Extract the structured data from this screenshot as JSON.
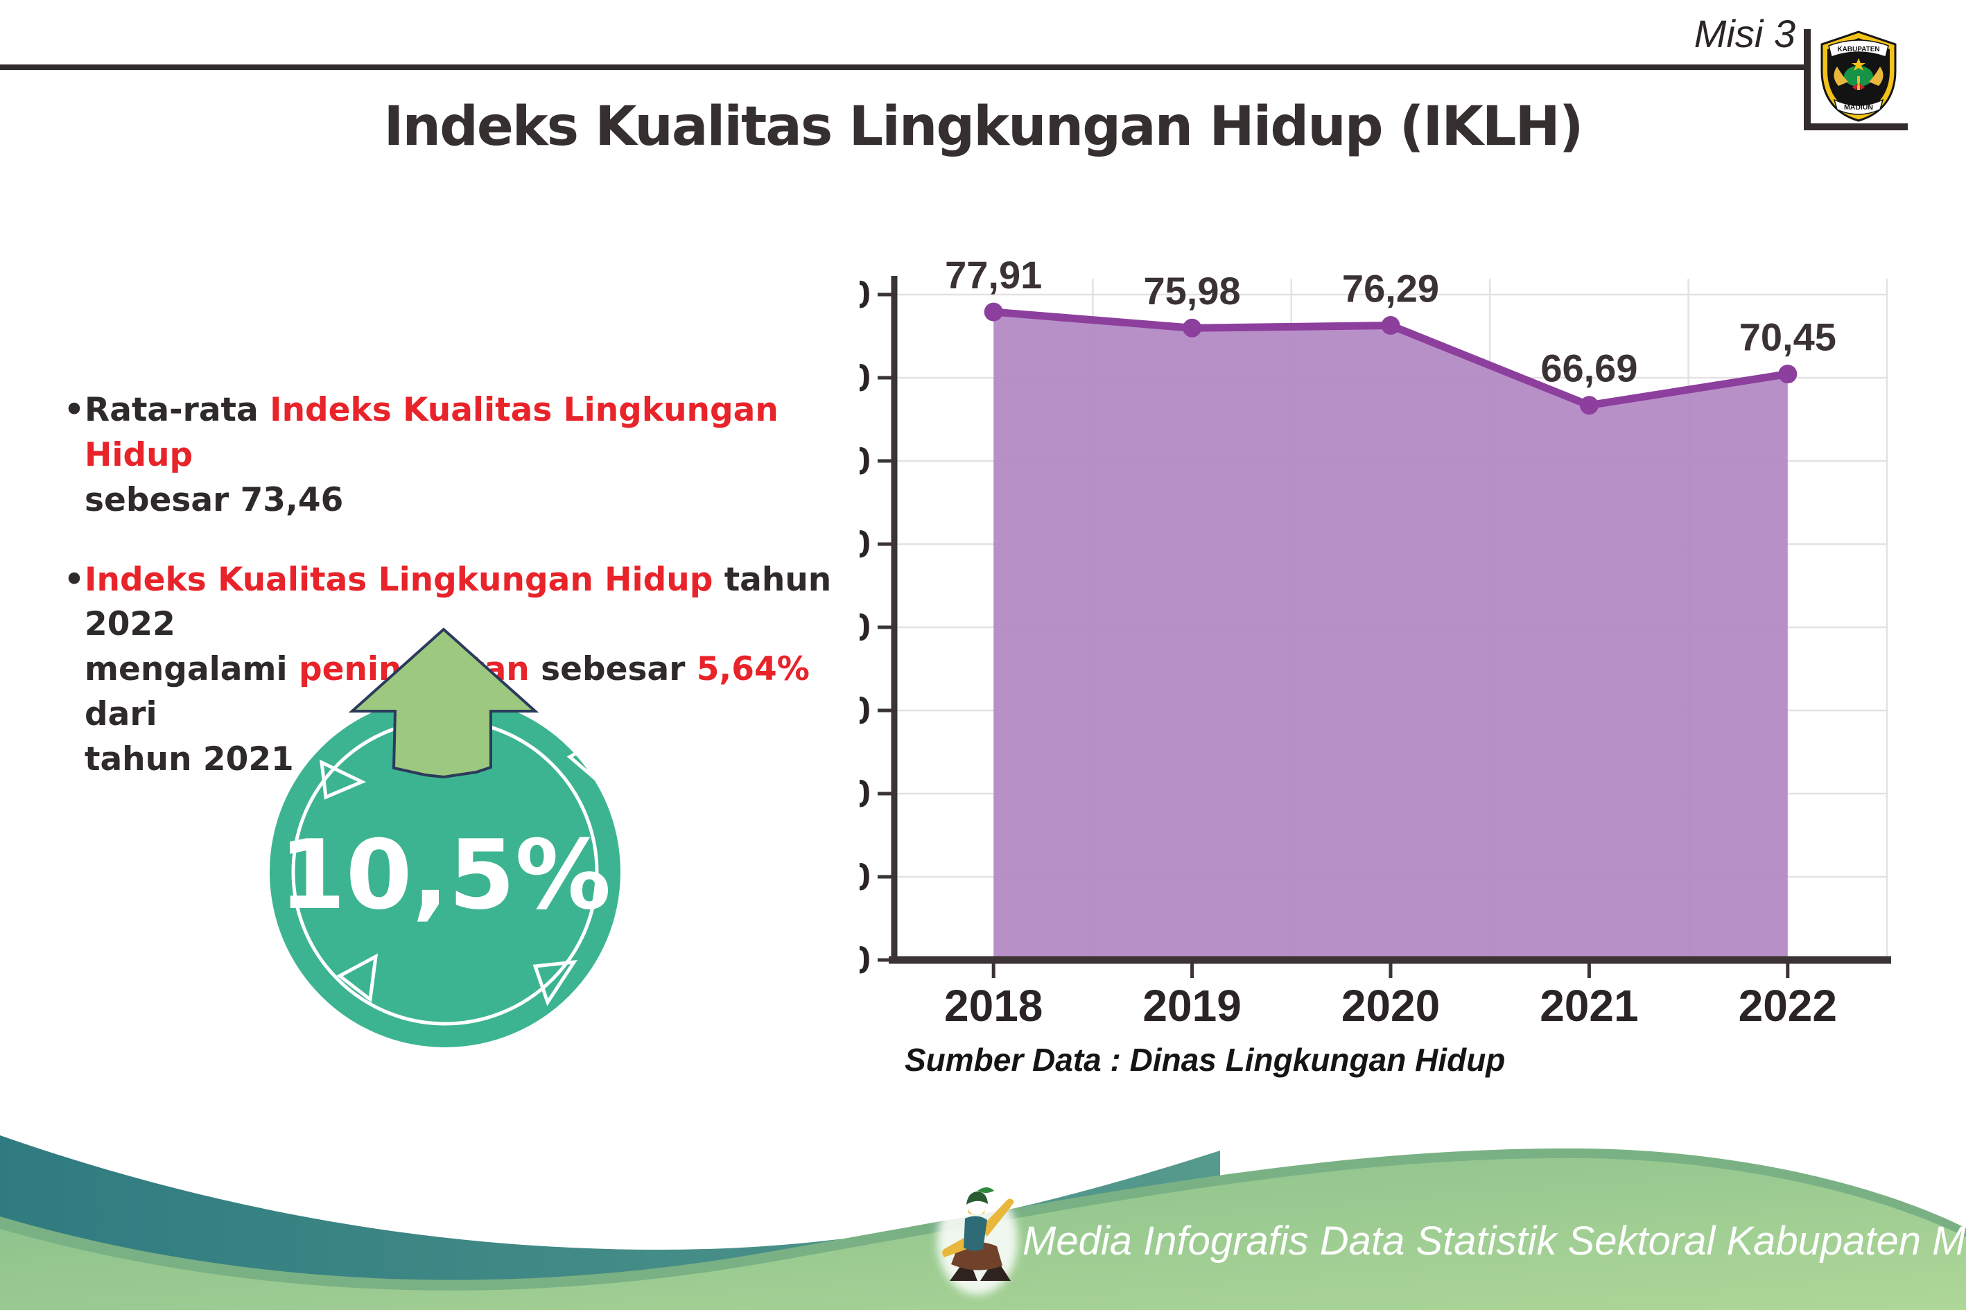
{
  "header": {
    "misi_label": "Misi 3",
    "title": "Indeks Kualitas Lingkungan Hidup (IKLH)"
  },
  "logo": {
    "top_text": "KABUPATEN",
    "bottom_text": "MADIUN"
  },
  "bullets": {
    "b1_seg1": "Rata-rata ",
    "b1_seg2": "Indeks Kualitas Lingkungan Hidup",
    "b1_seg3": "\nsebesar 73,46",
    "b2_seg1": "Indeks Kualitas Lingkungan Hidup",
    "b2_seg2": " tahun 2022\nmengalami ",
    "b2_seg3": "peningkatan",
    "b2_seg4": " sebesar ",
    "b2_seg5": "5,64%",
    "b2_seg6": " dari\ntahun 2021"
  },
  "badge": {
    "value": "10,5%"
  },
  "chart_data": {
    "type": "area",
    "title": "",
    "categories": [
      "2018",
      "2019",
      "2020",
      "2021",
      "2022"
    ],
    "values": [
      77.91,
      75.98,
      76.29,
      66.69,
      70.45
    ],
    "point_labels": [
      "77,91",
      "75,98",
      "76,29",
      "66,69",
      "70,45"
    ],
    "ylim": [
      0,
      80
    ],
    "ytick_step": 10,
    "grid": true,
    "legend": "none",
    "source": "Sumber Data : Dinas Lingkungan Hidup",
    "fill_color": "#b287c3",
    "line_color": "#8d3f9d",
    "grid_color": "#e4e1e2",
    "axis_color": "#3b3334",
    "label_color": "#3a3233"
  },
  "footer": {
    "credit": "Media Infografis Data Statistik Sektoral Kabupaten Madiun |"
  },
  "colors": {
    "accent_red": "#e8232a",
    "badge_teal": "#3db491",
    "arrow_green": "#9dc87f",
    "arrow_outline": "#2c3a5c",
    "wave_teal_dark": "#2f7b80",
    "wave_teal_light": "#569a8d",
    "hill_rim_green": "#7ab184",
    "hill_green_light": "#aed798",
    "hill_green_dark": "#86bd8a"
  }
}
